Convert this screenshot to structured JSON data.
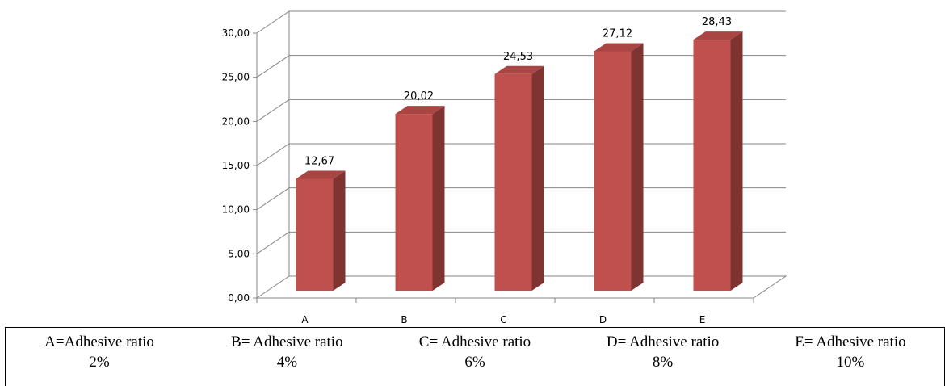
{
  "chart_data": {
    "type": "bar",
    "categories": [
      "A",
      "B",
      "C",
      "D",
      "E"
    ],
    "values": [
      12.67,
      20.02,
      24.53,
      27.12,
      28.43
    ],
    "data_labels": [
      "12,67",
      "20,02",
      "24,53",
      "27,12",
      "28,43"
    ],
    "yticks": [
      "0,00",
      "5,00",
      "10,00",
      "15,00",
      "20,00",
      "25,00",
      "30,00"
    ],
    "ylim": [
      0,
      30
    ],
    "grid": true,
    "title": "",
    "xlabel": "",
    "ylabel": "",
    "bar_color": "#c0504d",
    "bar_side_color": "#7f3432",
    "bar_top_color": "#a94543"
  },
  "legend": [
    {
      "line1": "A=Adhesive ratio",
      "line2": "2%"
    },
    {
      "line1": "B= Adhesive ratio",
      "line2": "4%"
    },
    {
      "line1": "C= Adhesive ratio",
      "line2": "6%"
    },
    {
      "line1": "D= Adhesive ratio",
      "line2": "8%"
    },
    {
      "line1": "E= Adhesive ratio",
      "line2": "10%"
    }
  ]
}
